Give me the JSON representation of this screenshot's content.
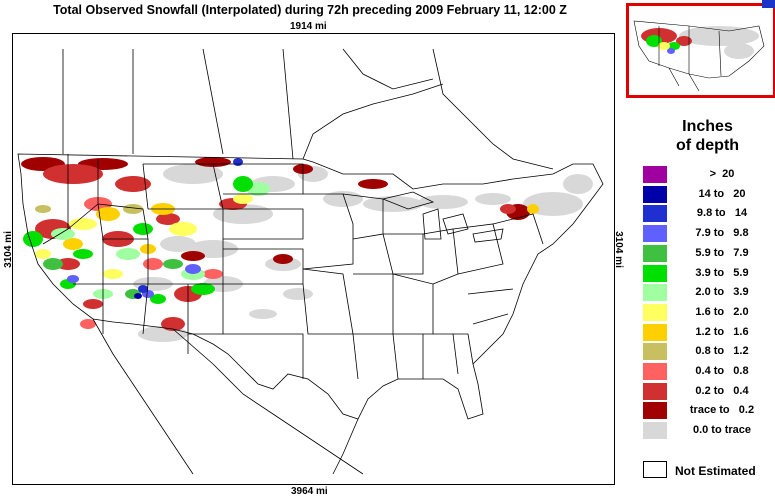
{
  "title": "Total Observed Snowfall (Interpolated) during 72h preceding 2009 February 11, 12:00 Z",
  "dimensions": {
    "top": "1914 mi",
    "bottom": "3964 mi",
    "left": "3104 mi",
    "right": "3104 mi"
  },
  "legend": {
    "title_line1": "Inches",
    "title_line2": "of depth",
    "items": [
      {
        "label": ">  20",
        "color": "#a000a0"
      },
      {
        "label": "14 to   20",
        "color": "#0000a8"
      },
      {
        "label": "9.8 to   14",
        "color": "#2030d0"
      },
      {
        "label": "7.9 to   9.8",
        "color": "#6060ff"
      },
      {
        "label": "5.9 to   7.9",
        "color": "#40c040"
      },
      {
        "label": "3.9 to   5.9",
        "color": "#00e000"
      },
      {
        "label": "2.0 to   3.9",
        "color": "#a0ffa0"
      },
      {
        "label": "1.6 to   2.0",
        "color": "#ffff60"
      },
      {
        "label": "1.2 to   1.6",
        "color": "#ffd000"
      },
      {
        "label": "0.8 to   1.2",
        "color": "#c8c060"
      },
      {
        "label": "0.4 to   0.8",
        "color": "#ff6060"
      },
      {
        "label": "0.2 to   0.4",
        "color": "#d03030"
      },
      {
        "label": "trace to   0.2",
        "color": "#a00000"
      },
      {
        "label": "0.0 to trace",
        "color": "#d8d8d8"
      }
    ],
    "not_estimated": "Not Estimated"
  }
}
